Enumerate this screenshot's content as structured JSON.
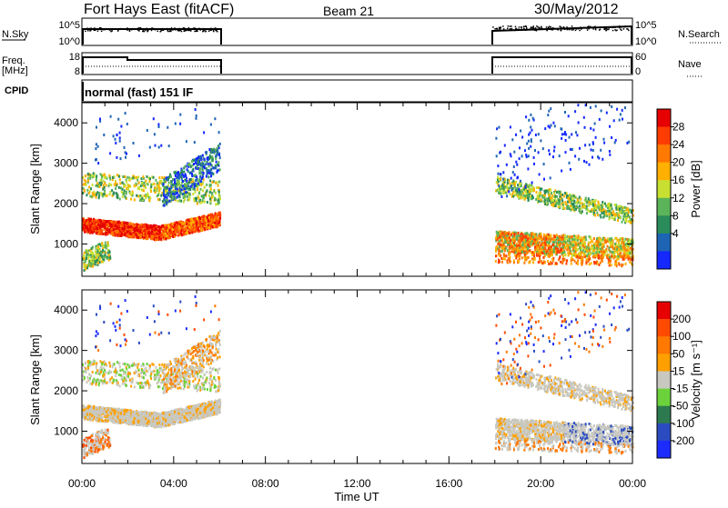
{
  "header": {
    "station": "Fort Hays East (fitACF)",
    "beam": "Beam 21",
    "date": "30/May/2012"
  },
  "noise_panel": {
    "left_label": "N.Sky",
    "left_ticks": [
      "10^5",
      "10^0"
    ],
    "right_label": "N.Search",
    "right_ticks": [
      "10^5",
      "10^0"
    ]
  },
  "freq_panel": {
    "left_label_1": "Freq.",
    "left_label_2": "[MHz]",
    "left_ticks": [
      "18",
      "8"
    ],
    "right_label": "Nave",
    "right_ticks": [
      "60",
      "0"
    ]
  },
  "cpid_panel": {
    "label": "CPID",
    "text": "normal (fast) 151 IF"
  },
  "colors": {
    "power": [
      "#1428ff",
      "#1e64b4",
      "#2a8c5a",
      "#5cb45a",
      "#c8e032",
      "#ffb000",
      "#ff7800",
      "#ff3c00",
      "#e60000"
    ],
    "velocity": [
      "#1c2cff",
      "#2a4cc0",
      "#2e7a50",
      "#6cd23c",
      "#c8c8c0",
      "#ffa000",
      "#ff7800",
      "#ff4a00",
      "#e60000"
    ]
  },
  "chart_data": [
    {
      "type": "heatmap",
      "name": "power",
      "ylabel": "Slant Range [km]",
      "xlabel": "",
      "x_ticks": [
        "00:00",
        "04:00",
        "08:00",
        "12:00",
        "16:00",
        "20:00",
        "00:00"
      ],
      "y_ticks": [
        "1000",
        "2000",
        "3000",
        "4000"
      ],
      "ylim": [
        200,
        4500
      ],
      "xlim_hours": [
        0,
        24
      ],
      "colorbar": {
        "label": "Power [dB]",
        "ticks": [
          "4",
          "8",
          "12",
          "16",
          "20",
          "24",
          "28"
        ],
        "range": [
          0,
          32
        ]
      },
      "data_windows_ut": [
        [
          "00:00",
          "06:00"
        ],
        [
          "18:00",
          "24:00"
        ]
      ]
    },
    {
      "type": "heatmap",
      "name": "velocity",
      "ylabel": "Slant Range [km]",
      "xlabel": "Time UT",
      "x_ticks": [
        "00:00",
        "04:00",
        "08:00",
        "12:00",
        "16:00",
        "20:00",
        "00:00"
      ],
      "y_ticks": [
        "1000",
        "2000",
        "3000",
        "4000"
      ],
      "ylim": [
        200,
        4500
      ],
      "xlim_hours": [
        0,
        24
      ],
      "colorbar": {
        "label": "Velocity [m s⁻¹]",
        "ticks": [
          "200",
          "100",
          "50",
          "15",
          "-15",
          "-50",
          "-100",
          "-200"
        ]
      },
      "data_windows_ut": [
        [
          "00:00",
          "06:00"
        ],
        [
          "18:00",
          "24:00"
        ]
      ]
    }
  ]
}
